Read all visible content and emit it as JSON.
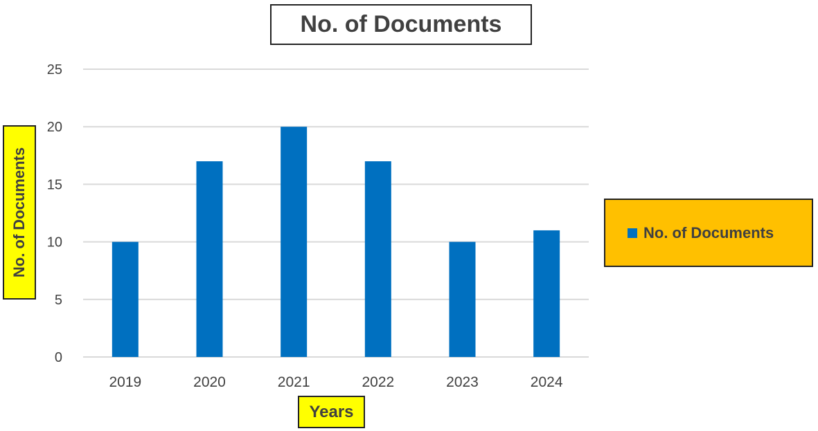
{
  "chart_data": {
    "type": "bar",
    "title": "No. of Documents",
    "xlabel": "Years",
    "ylabel": "No. of Documents",
    "categories": [
      "2019",
      "2020",
      "2021",
      "2022",
      "2023",
      "2024"
    ],
    "series": [
      {
        "name": "No. of Documents",
        "values": [
          10,
          17,
          20,
          17,
          10,
          11
        ],
        "color": "#0070c0"
      }
    ],
    "ylim": [
      0,
      25
    ],
    "yticks": [
      "0",
      "5",
      "10",
      "15",
      "20",
      "25"
    ],
    "grid": true,
    "legend_position": "right"
  },
  "colors": {
    "bar": "#0070c0",
    "label_box_fill": "#ffff00",
    "legend_fill": "#ffc000",
    "gridline": "#d9d9d9",
    "text": "#404040"
  }
}
